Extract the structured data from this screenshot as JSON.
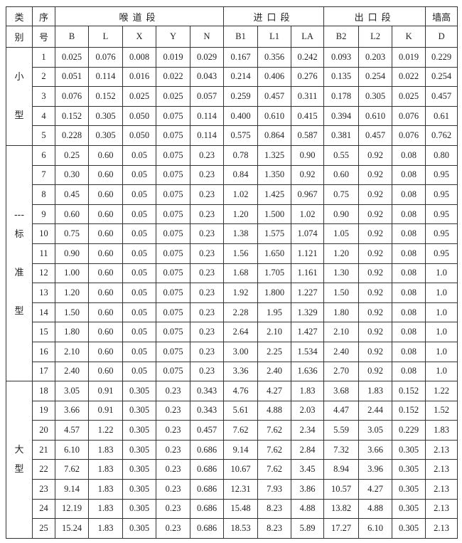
{
  "header": {
    "category": [
      "类",
      "别"
    ],
    "index": [
      "序",
      "号"
    ],
    "groups": [
      "喉道段",
      "进口段",
      "出口段",
      "墙高"
    ],
    "columns": [
      "B",
      "L",
      "X",
      "Y",
      "N",
      "B1",
      "L1",
      "LA",
      "B2",
      "L2",
      "K",
      "D"
    ]
  },
  "categories": [
    {
      "label": "小\n\n型",
      "rows": 5
    },
    {
      "label": "---\n标\n\n准\n\n型",
      "rows": 12
    },
    {
      "label": "大\n型",
      "rows": 8
    }
  ],
  "rows": [
    [
      "1",
      "0.025",
      "0.076",
      "0.008",
      "0.019",
      "0.029",
      "0.167",
      "0.356",
      "0.242",
      "0.093",
      "0.203",
      "0.019",
      "0.229"
    ],
    [
      "2",
      "0.051",
      "0.114",
      "0.016",
      "0.022",
      "0.043",
      "0.214",
      "0.406",
      "0.276",
      "0.135",
      "0.254",
      "0.022",
      "0.254"
    ],
    [
      "3",
      "0.076",
      "0.152",
      "0.025",
      "0.025",
      "0.057",
      "0.259",
      "0.457",
      "0.311",
      "0.178",
      "0.305",
      "0.025",
      "0.457"
    ],
    [
      "4",
      "0.152",
      "0.305",
      "0.050",
      "0.075",
      "0.114",
      "0.400",
      "0.610",
      "0.415",
      "0.394",
      "0.610",
      "0.076",
      "0.61"
    ],
    [
      "5",
      "0.228",
      "0.305",
      "0.050",
      "0.075",
      "0.114",
      "0.575",
      "0.864",
      "0.587",
      "0.381",
      "0.457",
      "0.076",
      "0.762"
    ],
    [
      "6",
      "0.25",
      "0.60",
      "0.05",
      "0.075",
      "0.23",
      "0.78",
      "1.325",
      "0.90",
      "0.55",
      "0.92",
      "0.08",
      "0.80"
    ],
    [
      "7",
      "0.30",
      "0.60",
      "0.05",
      "0.075",
      "0.23",
      "0.84",
      "1.350",
      "0.92",
      "0.60",
      "0.92",
      "0.08",
      "0.95"
    ],
    [
      "8",
      "0.45",
      "0.60",
      "0.05",
      "0.075",
      "0.23",
      "1.02",
      "1.425",
      "0.967",
      "0.75",
      "0.92",
      "0.08",
      "0.95"
    ],
    [
      "9",
      "0.60",
      "0.60",
      "0.05",
      "0.075",
      "0.23",
      "1.20",
      "1.500",
      "1.02",
      "0.90",
      "0.92",
      "0.08",
      "0.95"
    ],
    [
      "10",
      "0.75",
      "0.60",
      "0.05",
      "0.075",
      "0.23",
      "1.38",
      "1.575",
      "1.074",
      "1.05",
      "0.92",
      "0.08",
      "0.95"
    ],
    [
      "11",
      "0.90",
      "0.60",
      "0.05",
      "0.075",
      "0.23",
      "1.56",
      "1.650",
      "1.121",
      "1.20",
      "0.92",
      "0.08",
      "0.95"
    ],
    [
      "12",
      "1.00",
      "0.60",
      "0.05",
      "0.075",
      "0.23",
      "1.68",
      "1.705",
      "1.161",
      "1.30",
      "0.92",
      "0.08",
      "1.0"
    ],
    [
      "13",
      "1.20",
      "0.60",
      "0.05",
      "0.075",
      "0.23",
      "1.92",
      "1.800",
      "1.227",
      "1.50",
      "0.92",
      "0.08",
      "1.0"
    ],
    [
      "14",
      "1.50",
      "0.60",
      "0.05",
      "0.075",
      "0.23",
      "2.28",
      "1.95",
      "1.329",
      "1.80",
      "0.92",
      "0.08",
      "1.0"
    ],
    [
      "15",
      "1.80",
      "0.60",
      "0.05",
      "0.075",
      "0.23",
      "2.64",
      "2.10",
      "1.427",
      "2.10",
      "0.92",
      "0.08",
      "1.0"
    ],
    [
      "16",
      "2.10",
      "0.60",
      "0.05",
      "0.075",
      "0.23",
      "3.00",
      "2.25",
      "1.534",
      "2.40",
      "0.92",
      "0.08",
      "1.0"
    ],
    [
      "17",
      "2.40",
      "0.60",
      "0.05",
      "0.075",
      "0.23",
      "3.36",
      "2.40",
      "1.636",
      "2.70",
      "0.92",
      "0.08",
      "1.0"
    ],
    [
      "18",
      "3.05",
      "0.91",
      "0.305",
      "0.23",
      "0.343",
      "4.76",
      "4.27",
      "1.83",
      "3.68",
      "1.83",
      "0.152",
      "1.22"
    ],
    [
      "19",
      "3.66",
      "0.91",
      "0.305",
      "0.23",
      "0.343",
      "5.61",
      "4.88",
      "2.03",
      "4.47",
      "2.44",
      "0.152",
      "1.52"
    ],
    [
      "20",
      "4.57",
      "1.22",
      "0.305",
      "0.23",
      "0.457",
      "7.62",
      "7.62",
      "2.34",
      "5.59",
      "3.05",
      "0.229",
      "1.83"
    ],
    [
      "21",
      "6.10",
      "1.83",
      "0.305",
      "0.23",
      "0.686",
      "9.14",
      "7.62",
      "2.84",
      "7.32",
      "3.66",
      "0.305",
      "2.13"
    ],
    [
      "22",
      "7.62",
      "1.83",
      "0.305",
      "0.23",
      "0.686",
      "10.67",
      "7.62",
      "3.45",
      "8.94",
      "3.96",
      "0.305",
      "2.13"
    ],
    [
      "23",
      "9.14",
      "1.83",
      "0.305",
      "0.23",
      "0.686",
      "12.31",
      "7.93",
      "3.86",
      "10.57",
      "4.27",
      "0.305",
      "2.13"
    ],
    [
      "24",
      "12.19",
      "1.83",
      "0.305",
      "0.23",
      "0.686",
      "15.48",
      "8.23",
      "4.88",
      "13.82",
      "4.88",
      "0.305",
      "2.13"
    ],
    [
      "25",
      "15.24",
      "1.83",
      "0.305",
      "0.23",
      "0.686",
      "18.53",
      "8.23",
      "5.89",
      "17.27",
      "6.10",
      "0.305",
      "2.13"
    ]
  ]
}
